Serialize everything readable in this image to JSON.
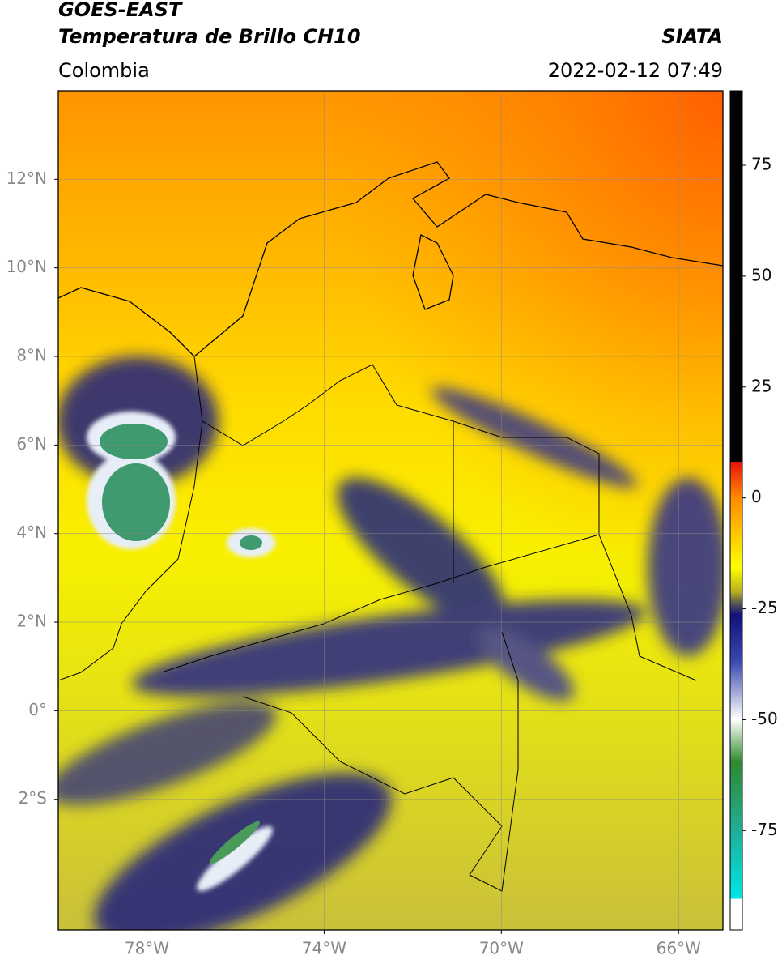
{
  "header": {
    "title": "GOES-EAST",
    "subtitle": "Temperatura de Brillo CH10",
    "region": "Colombia",
    "source": "SIATA",
    "datetime": "2022-02-12 07:49"
  },
  "map": {
    "lonlim": [
      -80,
      -65
    ],
    "latlim": [
      -4.95,
      14
    ],
    "lat_ticks": [
      {
        "value": 12,
        "label": "12°N"
      },
      {
        "value": 10,
        "label": "10°N"
      },
      {
        "value": 8,
        "label": "8°N"
      },
      {
        "value": 6,
        "label": "6°N"
      },
      {
        "value": 4,
        "label": "4°N"
      },
      {
        "value": 2,
        "label": "2°N"
      },
      {
        "value": 0,
        "label": "0°"
      },
      {
        "value": -2,
        "label": "2°S"
      }
    ],
    "lon_ticks": [
      {
        "value": -78,
        "label": "78°W"
      },
      {
        "value": -74,
        "label": "74°W"
      },
      {
        "value": -70,
        "label": "70°W"
      },
      {
        "value": -66,
        "label": "66°W"
      }
    ]
  },
  "colorbar": {
    "lim": [
      -97.4,
      91.8
    ],
    "ticks": [
      75,
      50,
      25,
      0,
      -25,
      -50,
      -75
    ]
  }
}
